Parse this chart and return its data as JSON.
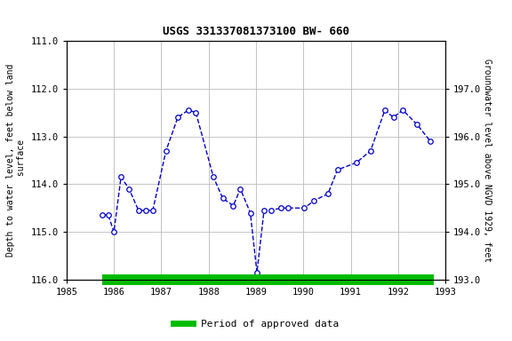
{
  "title": "USGS 331337081373100 BW- 660",
  "ylabel_left": "Depth to water level, feet below land\n surface",
  "ylabel_right": "Groundwater level above NGVD 1929, feet",
  "ylim_left": [
    116.0,
    111.0
  ],
  "ylim_right": [
    193.0,
    198.0
  ],
  "yticks_left": [
    111.0,
    112.0,
    113.0,
    114.0,
    115.0,
    116.0
  ],
  "yticks_right": [
    193.0,
    194.0,
    195.0,
    196.0,
    197.0
  ],
  "xlim": [
    1985,
    1993
  ],
  "xticks": [
    1985,
    1986,
    1987,
    1988,
    1989,
    1990,
    1991,
    1992,
    1993
  ],
  "data_x": [
    1985.75,
    1985.88,
    1986.0,
    1986.15,
    1986.32,
    1986.52,
    1986.67,
    1986.82,
    1987.1,
    1987.35,
    1987.57,
    1987.73,
    1988.1,
    1988.3,
    1988.52,
    1988.67,
    1988.88,
    1989.02,
    1989.17,
    1989.32,
    1989.52,
    1989.67,
    1990.02,
    1990.22,
    1990.52,
    1990.72,
    1991.12,
    1991.42,
    1991.72,
    1991.9,
    1992.1,
    1992.4,
    1992.68
  ],
  "data_y": [
    114.65,
    114.65,
    115.0,
    113.85,
    114.1,
    114.55,
    114.55,
    114.55,
    113.3,
    112.6,
    112.45,
    112.5,
    113.85,
    114.3,
    114.45,
    114.1,
    114.6,
    115.85,
    114.55,
    114.55,
    114.5,
    114.5,
    114.5,
    114.35,
    114.2,
    113.7,
    113.55,
    113.3,
    112.45,
    112.6,
    112.45,
    112.75,
    113.1
  ],
  "line_color": "#0000cc",
  "marker_color": "#0000cc",
  "marker_face": "white",
  "linestyle": "--",
  "linewidth": 1.0,
  "markersize": 4,
  "green_bar_color": "#00bb00",
  "green_bar_x_start": 1985.75,
  "green_bar_x_end": 1992.75,
  "grid_color": "#bbbbbb",
  "bg_color": "#ffffff",
  "legend_label": "Period of approved data",
  "title_fontsize": 9,
  "label_fontsize": 7,
  "tick_fontsize": 7.5
}
